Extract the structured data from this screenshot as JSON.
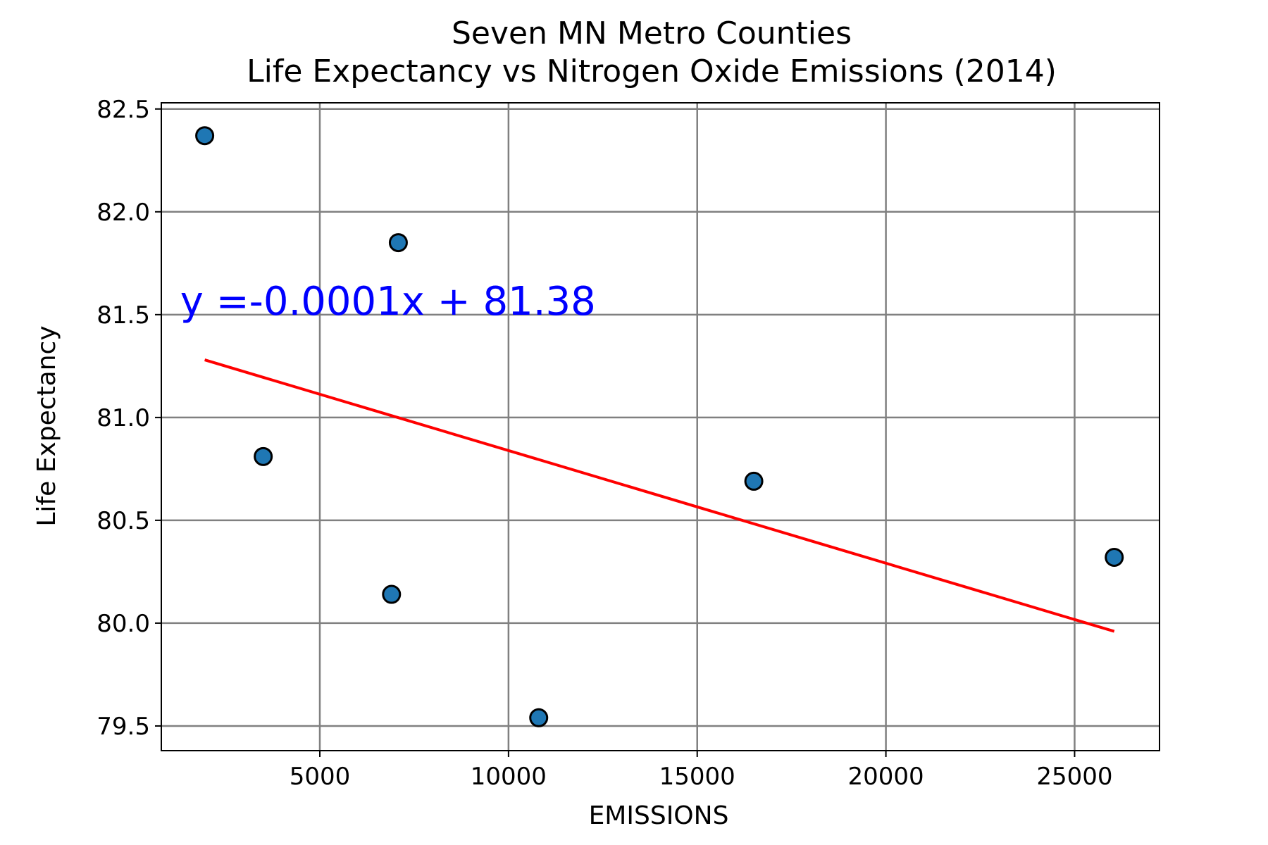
{
  "chart_data": {
    "type": "scatter",
    "title_lines": [
      "Seven MN Metro Counties",
      "Life Expectancy vs Nitrogen Oxide Emissions (2014)"
    ],
    "xlabel": "EMISSIONS",
    "ylabel": "Life Expectancy",
    "xlim": [
      800,
      27250
    ],
    "ylim": [
      79.38,
      82.53
    ],
    "xticks": [
      5000,
      10000,
      15000,
      20000,
      25000
    ],
    "xtick_labels": [
      "5000",
      "10000",
      "15000",
      "20000",
      "25000"
    ],
    "yticks": [
      79.5,
      80.0,
      80.5,
      81.0,
      81.5,
      82.0,
      82.5
    ],
    "ytick_labels": [
      "79.5",
      "80.0",
      "80.5",
      "81.0",
      "81.5",
      "82.0",
      "82.5"
    ],
    "grid": true,
    "points": [
      {
        "x": 1950,
        "y": 82.37
      },
      {
        "x": 3500,
        "y": 80.81
      },
      {
        "x": 6900,
        "y": 80.14
      },
      {
        "x": 7080,
        "y": 81.85
      },
      {
        "x": 10800,
        "y": 79.54
      },
      {
        "x": 16500,
        "y": 80.69
      },
      {
        "x": 26050,
        "y": 80.32
      }
    ],
    "regression": {
      "x": [
        1950,
        26050
      ],
      "y": [
        81.28,
        79.96
      ],
      "equation": "y =-0.0001x + 81.38",
      "equation_anchor": {
        "x": 1300,
        "y": 81.5
      }
    },
    "colors": {
      "points": "#1f77b4",
      "point_edge": "#000000",
      "regression": "#ff0000",
      "equation": "#0000ff",
      "grid": "#808080"
    }
  }
}
